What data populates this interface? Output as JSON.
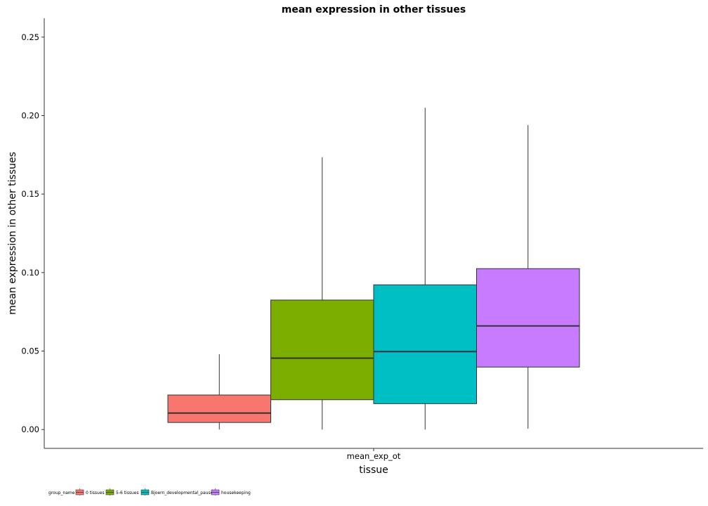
{
  "chart_data": {
    "type": "box",
    "title": "mean expression in other tissues",
    "xlabel": "tissue",
    "ylabel": "mean expression in other tissues",
    "categories": [
      "mean_exp_ot"
    ],
    "ylim": [
      -0.012,
      0.262
    ],
    "yticks": [
      "0.00",
      "0.05",
      "0.10",
      "0.15",
      "0.20",
      "0.25"
    ],
    "ytick_values": [
      0,
      0.05,
      0.1,
      0.15,
      0.2,
      0.25
    ],
    "grid": false,
    "legend_position": "bottom-left",
    "legend_title": "group_name",
    "series": [
      {
        "name": "0 tissues",
        "color": "#F8766D",
        "min": 0.0,
        "q1": 0.0045,
        "median": 0.0105,
        "q3": 0.022,
        "max": 0.048
      },
      {
        "name": "5-6 tissues",
        "color": "#7CAE00",
        "min": 0.0,
        "q1": 0.019,
        "median": 0.0455,
        "q3": 0.0825,
        "max": 0.1735
      },
      {
        "name": "Bjoern_developmental_pauses",
        "color": "#00BFC4",
        "min": 0.0,
        "q1": 0.0165,
        "median": 0.0497,
        "q3": 0.0922,
        "max": 0.205
      },
      {
        "name": "housekeeping",
        "color": "#C77CFF",
        "min": 0.0005,
        "q1": 0.0398,
        "median": 0.066,
        "q3": 0.1025,
        "max": 0.194
      }
    ]
  }
}
